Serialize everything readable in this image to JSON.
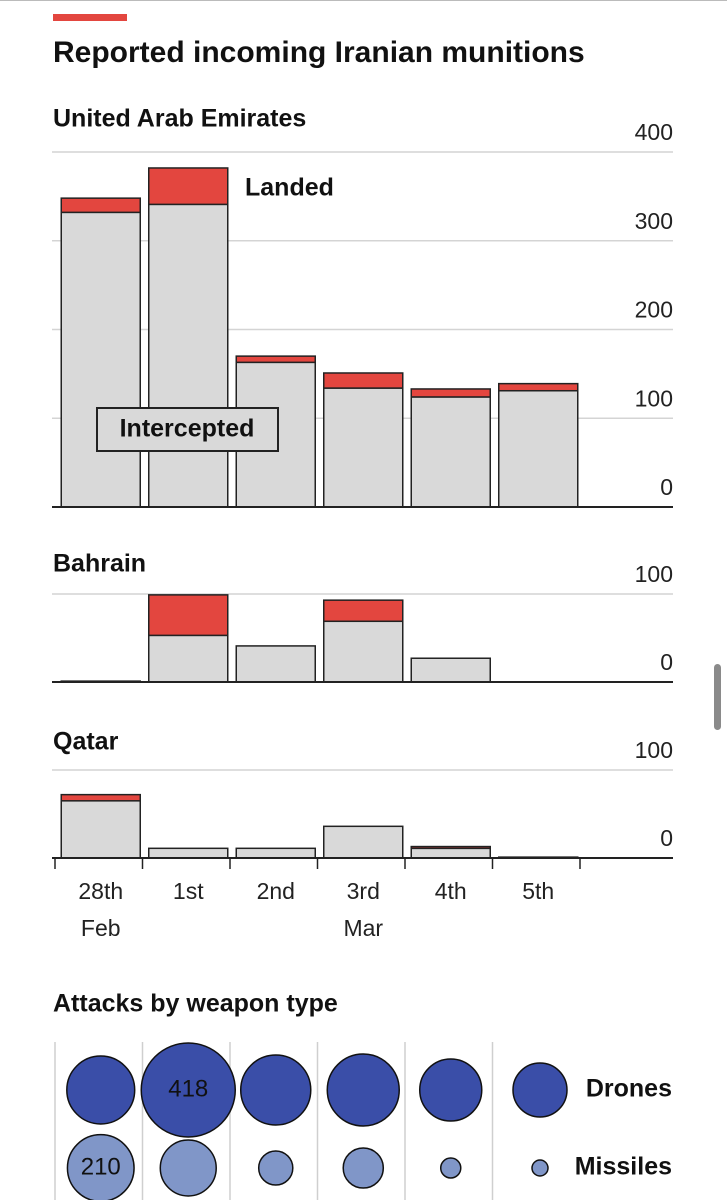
{
  "title": "Reported incoming Iranian munitions",
  "chart_data": [
    {
      "type": "bar",
      "stacked": true,
      "subtitle": "United Arab Emirates",
      "series": [
        {
          "name": "Intercepted",
          "color": "#d9d9d9",
          "values": [
            332,
            341,
            163,
            134,
            124,
            131
          ]
        },
        {
          "name": "Landed",
          "color": "#e3463f",
          "values": [
            16,
            41,
            7,
            17,
            9,
            8
          ]
        }
      ],
      "ylim": [
        0,
        400
      ],
      "yticks": [
        0,
        100,
        200,
        300,
        400
      ],
      "grid": true
    },
    {
      "type": "bar",
      "stacked": true,
      "subtitle": "Bahrain",
      "series": [
        {
          "color": "#d9d9d9",
          "values": [
            1,
            53,
            41,
            69,
            27,
            0
          ]
        },
        {
          "color": "#e3463f",
          "values": [
            0,
            46,
            0,
            24,
            0,
            0
          ]
        }
      ],
      "ylim": [
        0,
        100
      ],
      "yticks": [
        0,
        100
      ],
      "grid": true
    },
    {
      "type": "bar",
      "stacked": true,
      "subtitle": "Qatar",
      "categories": [
        "28th",
        "1st",
        "2nd",
        "3rd",
        "4th",
        "5th"
      ],
      "category_sublabels": [
        "Feb",
        null,
        null,
        "Mar",
        null,
        null
      ],
      "series": [
        {
          "color": "#d9d9d9",
          "values": [
            65,
            11,
            11,
            36,
            11,
            1
          ]
        },
        {
          "color": "#e3463f",
          "values": [
            7,
            0,
            0,
            0,
            2,
            0
          ]
        }
      ],
      "ylim": [
        0,
        100
      ],
      "yticks": [
        0,
        100
      ],
      "grid": true
    },
    {
      "type": "bubble",
      "title": "Attacks by weapon type",
      "series": [
        {
          "name": "Drones",
          "color": "#3a4ea8",
          "values": [
            218,
            418,
            232,
            245,
            182
          ],
          "show_labels": [
            false,
            true,
            false,
            false,
            false
          ]
        },
        {
          "name": "Missiles",
          "color": "#8096c8",
          "values": [
            210,
            148,
            55,
            76,
            19
          ],
          "show_labels": [
            true,
            false,
            false,
            false,
            false
          ]
        }
      ]
    }
  ]
}
